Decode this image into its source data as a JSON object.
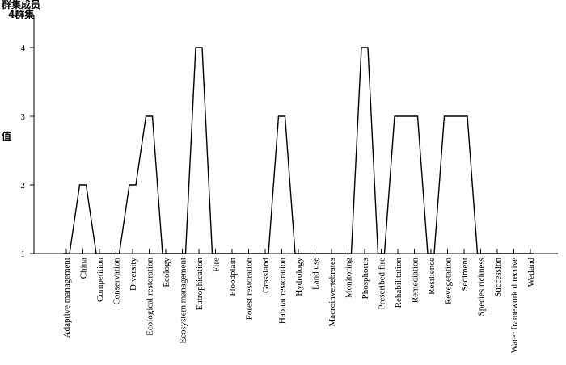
{
  "legend": {
    "title": "群集成员",
    "entry": "4群集"
  },
  "chart_data": {
    "type": "line",
    "ylabel": "值",
    "ylim": [
      1,
      4.3
    ],
    "yticks": [
      1,
      2,
      3,
      4
    ],
    "categories": [
      "Adaptive management",
      "China",
      "Competition",
      "Conservation",
      "Diversity",
      "Ecological restoration",
      "Ecology",
      "Ecosystem management",
      "Eutrophication",
      "Fire",
      "Floodplain",
      "Forest restoration",
      "Grassland",
      "Habitat restoration",
      "Hydrology",
      "Land use",
      "Macroinvertebrates",
      "Monitoring",
      "Phosphorus",
      "Prescribed fire",
      "Rehabilitation",
      "Remediation",
      "Resilience",
      "Revegetation",
      "Sediment",
      "Species richness",
      "Succession",
      "Water framework directive",
      "Wetland"
    ],
    "values": [
      1,
      2,
      1,
      1,
      2,
      3,
      1,
      1,
      4,
      1,
      1,
      1,
      1,
      3,
      1,
      1,
      1,
      1,
      4,
      1,
      3,
      3,
      1,
      3,
      3,
      1,
      1,
      1,
      1
    ],
    "grid": false,
    "legend_position": "top-left"
  }
}
